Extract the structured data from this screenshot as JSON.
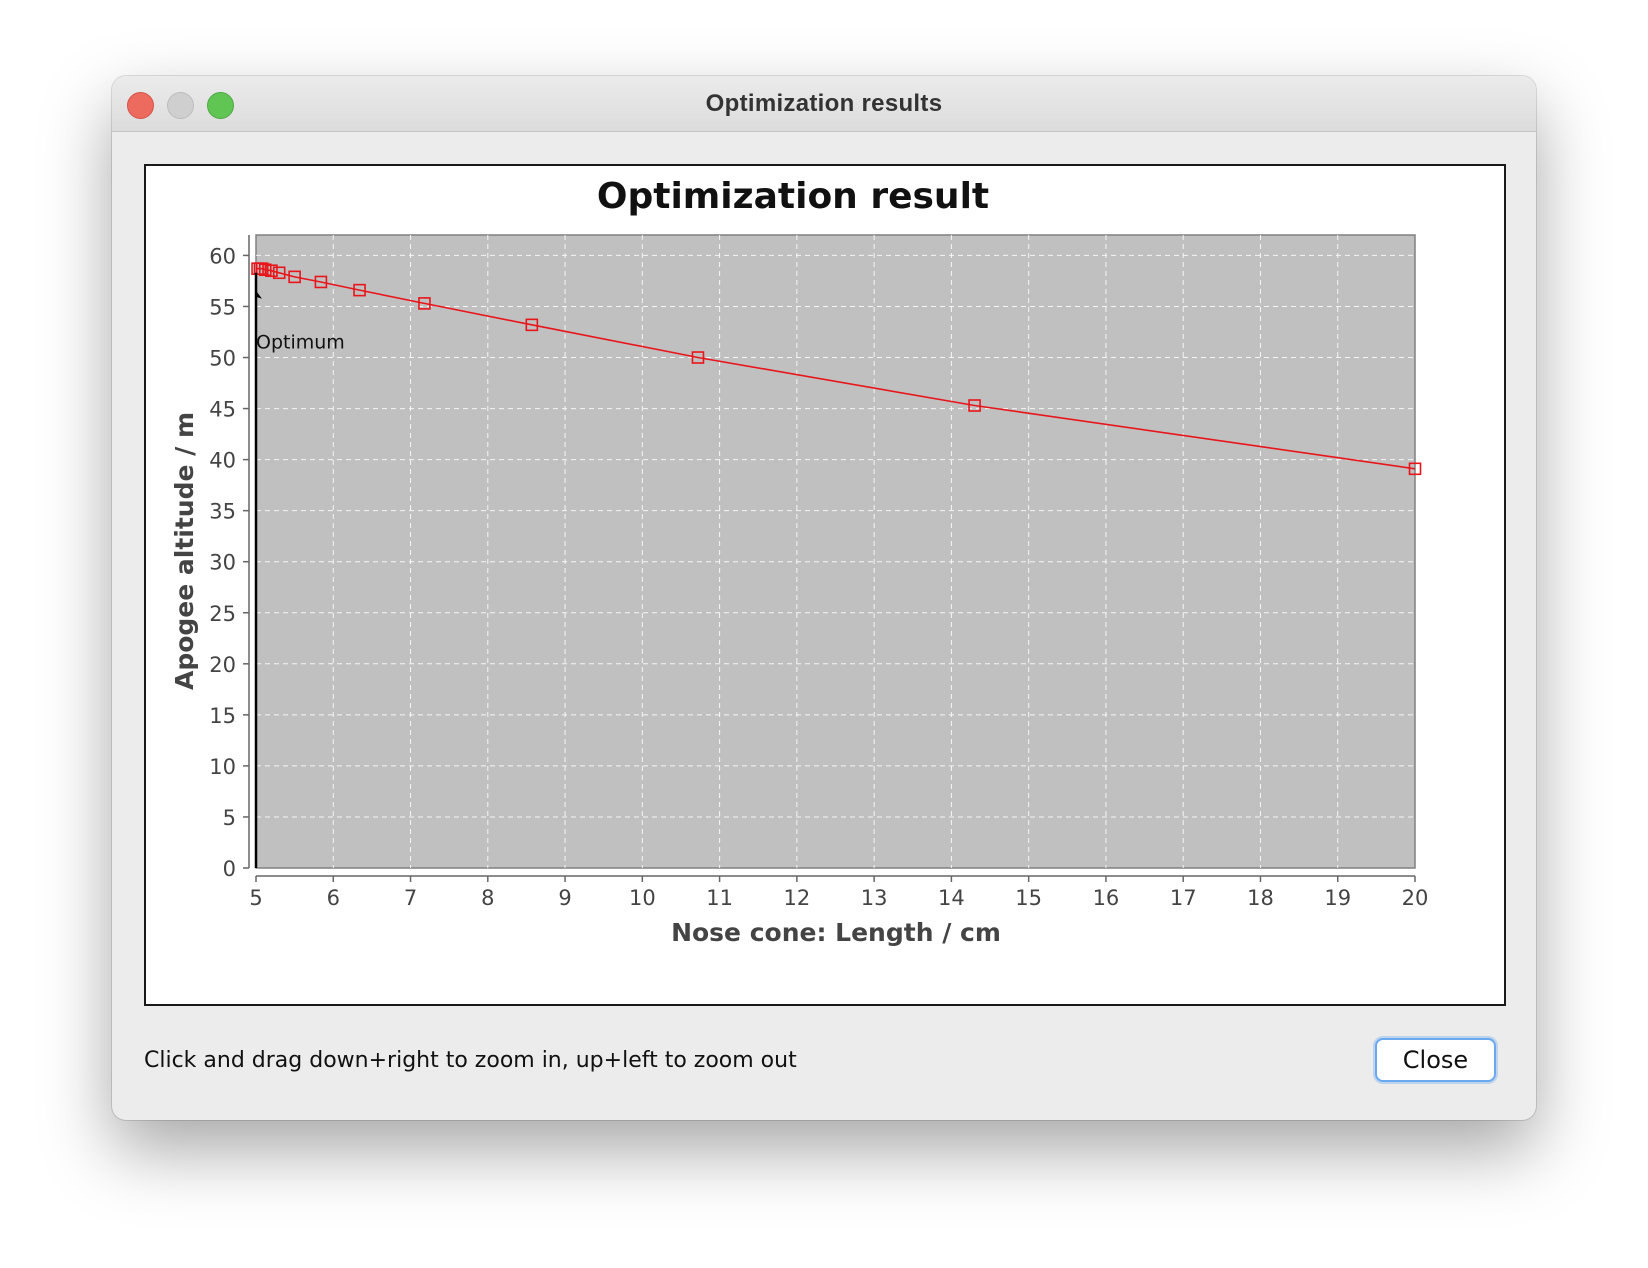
{
  "window": {
    "title": "Optimization results"
  },
  "chart_data": {
    "type": "line",
    "title": "Optimization result",
    "xlabel": "Nose cone: Length / cm",
    "ylabel": "Apogee altitude / m",
    "xlim": [
      5,
      20
    ],
    "ylim": [
      0,
      62
    ],
    "xticks": [
      5,
      6,
      7,
      8,
      9,
      10,
      11,
      12,
      13,
      14,
      15,
      16,
      17,
      18,
      19,
      20
    ],
    "yticks": [
      0,
      5,
      10,
      15,
      20,
      25,
      30,
      35,
      40,
      45,
      50,
      55,
      60
    ],
    "grid": true,
    "series": [
      {
        "color": "#e8151b",
        "marker": "square",
        "points": [
          [
            20,
            39.1
          ],
          [
            14.3,
            45.3
          ],
          [
            10.72,
            50.0
          ],
          [
            8.57,
            53.2
          ],
          [
            7.18,
            55.3
          ],
          [
            6.34,
            56.6
          ],
          [
            5.84,
            57.4
          ],
          [
            5.5,
            57.9
          ],
          [
            5.3,
            58.3
          ],
          [
            5.2,
            58.5
          ],
          [
            5.12,
            58.6
          ],
          [
            5.08,
            58.7
          ],
          [
            5.05,
            58.7
          ],
          [
            5.02,
            58.7
          ]
        ]
      }
    ],
    "annotations": [
      {
        "text": "Optimum",
        "x": 5.0,
        "y": 58.7
      }
    ]
  },
  "footer": {
    "hint": "Click and drag down+right to zoom in, up+left to zoom out",
    "close_label": "Close"
  }
}
